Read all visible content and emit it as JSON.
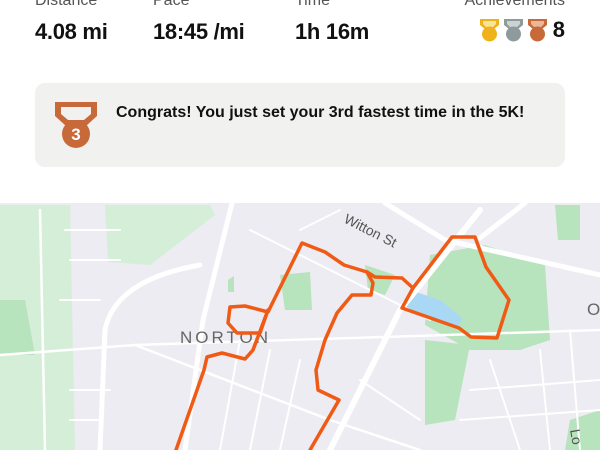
{
  "stats": [
    {
      "label": "Distance",
      "value": "4.08 mi"
    },
    {
      "label": "Pace",
      "value": "18:45 /mi"
    },
    {
      "label": "Time",
      "value": "1h 16m"
    }
  ],
  "achievements": {
    "label": "Achievements",
    "count": "8",
    "medal_colors": {
      "gold": "#f0b21b",
      "silver": "#8f9a9c",
      "bronze": "#c8693a"
    }
  },
  "banner": {
    "message": "Congrats! You just set your 3rd fastest time in the 5K!",
    "medal_number": "3",
    "medal_icon": "bronze-medal-icon"
  },
  "map": {
    "labels": {
      "street": "Witton St",
      "area": "NORTON",
      "edge_right": "O",
      "edge_bottom": "Lo"
    },
    "route_color": "#f05a14"
  }
}
